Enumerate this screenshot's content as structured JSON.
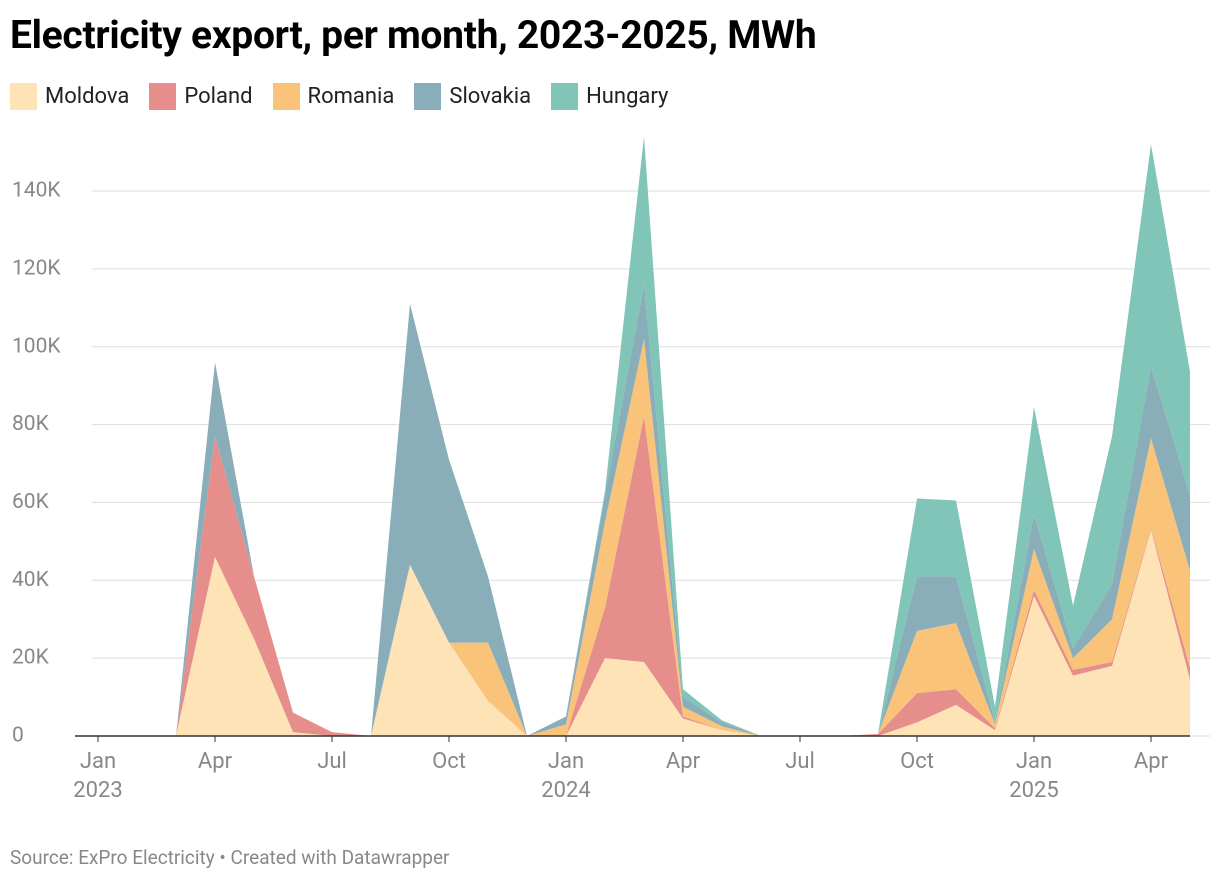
{
  "chart_data": {
    "type": "stacked_area",
    "title": "Electricity export, per month, 2023-2025, MWh",
    "source": "Source: ExPro Electricity • Created with Datawrapper",
    "x": [
      "2023-01",
      "2023-02",
      "2023-03",
      "2023-04",
      "2023-05",
      "2023-06",
      "2023-07",
      "2023-08",
      "2023-09",
      "2023-10",
      "2023-11",
      "2023-12",
      "2024-01",
      "2024-02",
      "2024-03",
      "2024-04",
      "2024-05",
      "2024-06",
      "2024-07",
      "2024-08",
      "2024-09",
      "2024-10",
      "2024-11",
      "2024-12",
      "2025-01",
      "2025-02",
      "2025-03",
      "2025-04",
      "2025-05"
    ],
    "series": [
      {
        "name": "Moldova",
        "color": "#fde3b6",
        "values": [
          0,
          0,
          0,
          46000,
          25000,
          1000,
          0,
          0,
          44000,
          24000,
          9000,
          0,
          0,
          20000,
          19000,
          4500,
          1500,
          0,
          0,
          0,
          0,
          3500,
          8000,
          1500,
          36000,
          15500,
          18000,
          53000,
          14500
        ]
      },
      {
        "name": "Poland",
        "color": "#e58e8b",
        "values": [
          0,
          0,
          0,
          31000,
          16000,
          5000,
          1000,
          0,
          0,
          0,
          0,
          0,
          0,
          13000,
          63000,
          500,
          0,
          0,
          0,
          0,
          500,
          7500,
          4000,
          500,
          1500,
          1500,
          1000,
          500,
          3000
        ]
      },
      {
        "name": "Romania",
        "color": "#f9c37a",
        "values": [
          0,
          0,
          0,
          0,
          0,
          0,
          0,
          0,
          0,
          0,
          15000,
          0,
          3000,
          22000,
          20000,
          2500,
          1000,
          0,
          0,
          0,
          0,
          16000,
          17000,
          1000,
          10500,
          3000,
          11000,
          23000,
          25000
        ]
      },
      {
        "name": "Slovakia",
        "color": "#89aeb9",
        "values": [
          0,
          0,
          0,
          19000,
          0,
          0,
          0,
          0,
          67000,
          47000,
          17000,
          0,
          2000,
          7000,
          14000,
          2500,
          1000,
          0,
          0,
          0,
          0,
          14000,
          12000,
          500,
          9000,
          2500,
          9000,
          18500,
          19500
        ]
      },
      {
        "name": "Hungary",
        "color": "#80c5b8",
        "values": [
          0,
          0,
          0,
          0,
          0,
          0,
          0,
          0,
          0,
          0,
          0,
          0,
          0,
          1000,
          38000,
          2000,
          500,
          0,
          0,
          0,
          0,
          20000,
          19500,
          4000,
          27500,
          11000,
          38000,
          57000,
          31500
        ]
      }
    ],
    "ylim": [
      0,
      150000
    ],
    "yticks": [
      {
        "value": 0,
        "label": "0"
      },
      {
        "value": 20000,
        "label": "20K"
      },
      {
        "value": 40000,
        "label": "40K"
      },
      {
        "value": 60000,
        "label": "60K"
      },
      {
        "value": 80000,
        "label": "80K"
      },
      {
        "value": 100000,
        "label": "100K"
      },
      {
        "value": 120000,
        "label": "120K"
      },
      {
        "value": 140000,
        "label": "140K"
      }
    ],
    "xticks": [
      {
        "value": "2023-01",
        "label": "Jan 2023"
      },
      {
        "value": "2023-04",
        "label": "Apr"
      },
      {
        "value": "2023-07",
        "label": "Jul"
      },
      {
        "value": "2023-10",
        "label": "Oct"
      },
      {
        "value": "2024-01",
        "label": "Jan 2024"
      },
      {
        "value": "2024-04",
        "label": "Apr"
      },
      {
        "value": "2024-07",
        "label": "Jul"
      },
      {
        "value": "2024-10",
        "label": "Oct"
      },
      {
        "value": "2025-01",
        "label": "Jan 2025"
      },
      {
        "value": "2025-04",
        "label": "Apr"
      }
    ],
    "grid": true
  }
}
